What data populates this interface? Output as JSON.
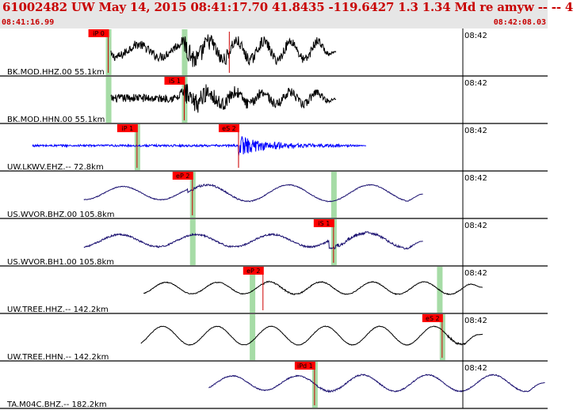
{
  "header": {
    "title": "61002482 UW May 14, 2015 08:41:17.70   41.8435 -119.6427  1.3 1.34 Md re amyw -- --    4",
    "start_time": "08:41:16.99",
    "end_time": "08:42:08.03"
  },
  "colors": {
    "header_text": "#c80000",
    "trace_default": "#000000",
    "trace_lkwv": "#0000ff",
    "trace_navy": "#1a1070",
    "pick_box": "#ff0000",
    "pick_line": "#cc0000",
    "window_band": "#a6dca6"
  },
  "traces": [
    {
      "label": "BK.MOD.HHZ.00 55.1km",
      "tick": "08:42",
      "color": "trace_default",
      "onset": 0.2,
      "end": 0.615,
      "pre_amp": 0.3,
      "pre_period": 0.08,
      "body_amp": 0.45,
      "body_period": 0.05,
      "noise": 0.22,
      "burst_at": 0.335,
      "burst_amp": 0.45,
      "windows": [
        0.195,
        0.335
      ],
      "lines": [
        0.418
      ],
      "picks": [
        {
          "label": "iP 0",
          "at": 0.195
        }
      ]
    },
    {
      "label": "BK.MOD.HHN.00 55.1km",
      "tick": "08:42",
      "color": "trace_default",
      "onset": 0.2,
      "end": 0.615,
      "pre_amp": 0.02,
      "pre_period": 0.08,
      "body_amp": 0.3,
      "body_period": 0.05,
      "noise": 0.2,
      "burst_at": 0.335,
      "burst_amp": 0.48,
      "windows": [
        0.195,
        0.335
      ],
      "lines": [],
      "picks": [
        {
          "label": "iS 1",
          "at": 0.335
        }
      ]
    },
    {
      "label": "UW.LKWV.EHZ.-- 72.8km",
      "tick": "08:42",
      "color": "trace_lkwv",
      "onset": 0.055,
      "end": 0.67,
      "pre_amp": 0.0,
      "pre_period": 0.08,
      "body_amp": 0.0,
      "body_period": 0.05,
      "noise": 0.05,
      "burst_at": 0.435,
      "burst_amp": 0.45,
      "windows": [
        0.248
      ],
      "lines": [
        0.435
      ],
      "picks": [
        {
          "label": "iP 1",
          "at": 0.248
        },
        {
          "label": "eS 2",
          "at": 0.435
        }
      ]
    },
    {
      "label": "US.WVOR.BHZ.00 105.8km",
      "tick": "08:42",
      "color": "trace_navy",
      "onset": 0.15,
      "end": 0.775,
      "pre_amp": 0.32,
      "pre_period": 0.14,
      "body_amp": 0.4,
      "body_period": 0.15,
      "noise": 0.02,
      "burst_at": 0.35,
      "burst_amp": 0.05,
      "windows": [
        0.35,
        0.61
      ],
      "lines": [],
      "picks": [
        {
          "label": "eP 2",
          "at": 0.35
        }
      ]
    },
    {
      "label": "US.WVOR.BH1.00 105.8km",
      "tick": "08:42",
      "color": "trace_navy",
      "onset": 0.15,
      "end": 0.775,
      "pre_amp": 0.3,
      "pre_period": 0.14,
      "body_amp": 0.38,
      "body_period": 0.15,
      "noise": 0.04,
      "burst_at": 0.61,
      "burst_amp": 0.08,
      "windows": [
        0.35,
        0.61
      ],
      "lines": [],
      "picks": [
        {
          "label": "iS 1",
          "at": 0.61
        }
      ]
    },
    {
      "label": "UW.TREE.HHZ.-- 142.2km",
      "tick": "08:42",
      "color": "trace_default",
      "onset": 0.26,
      "end": 0.885,
      "pre_amp": 0.28,
      "pre_period": 0.095,
      "body_amp": 0.3,
      "body_period": 0.095,
      "noise": 0.02,
      "burst_at": 0.48,
      "burst_amp": 0.03,
      "windows": [
        0.46,
        0.805
      ],
      "lines": [],
      "picks": [
        {
          "label": "eP 2",
          "at": 0.48
        }
      ]
    },
    {
      "label": "UW.TREE.HHN.-- 142.2km",
      "tick": "08:42",
      "color": "trace_default",
      "onset": 0.255,
      "end": 0.885,
      "pre_amp": 0.45,
      "pre_period": 0.1,
      "body_amp": 0.42,
      "body_period": 0.1,
      "noise": 0.015,
      "burst_at": 0.82,
      "burst_amp": 0.05,
      "windows": [
        0.46,
        0.81
      ],
      "lines": [],
      "picks": [
        {
          "label": "eS 2",
          "at": 0.81
        }
      ]
    },
    {
      "label": "TA.M04C.BHZ.-- 182.2km",
      "tick": "08:42",
      "color": "trace_navy",
      "onset": 0.38,
      "end": 1.0,
      "pre_amp": 0.35,
      "pre_period": 0.12,
      "body_amp": 0.4,
      "body_period": 0.12,
      "noise": 0.025,
      "burst_at": 0.575,
      "burst_amp": 0.03,
      "windows": [
        0.575
      ],
      "lines": [],
      "picks": [
        {
          "label": "iPd 1",
          "at": 0.575
        }
      ]
    }
  ]
}
